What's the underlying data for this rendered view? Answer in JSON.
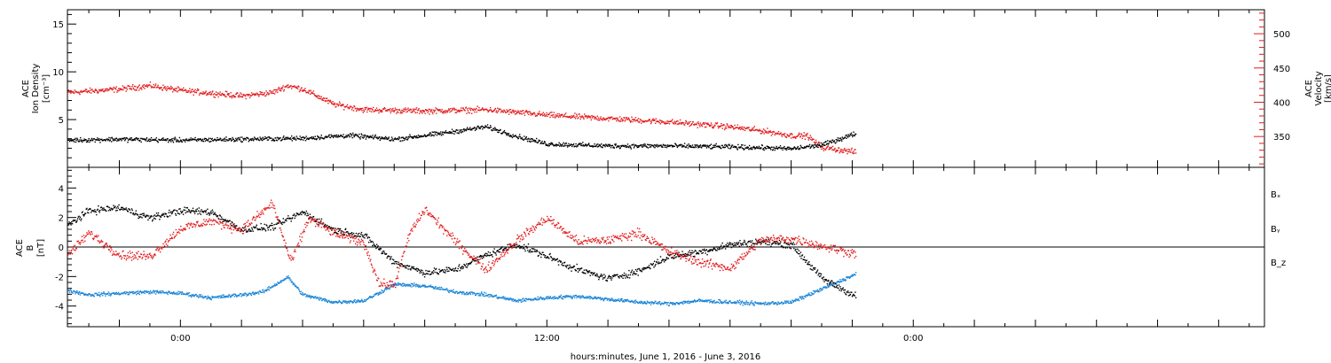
{
  "chart_data": {
    "type": "scatter",
    "x_title": "hours:minutes, June  1, 2016 - June  3, 2016",
    "x_range_hours": [
      -3.7,
      35.5
    ],
    "x_tick_labels": [
      {
        "hour": 0,
        "label": "0:00"
      },
      {
        "hour": 12,
        "label": "12:00"
      },
      {
        "hour": 24,
        "label": "0:00"
      }
    ],
    "colors": {
      "black": "#000000",
      "red": "#e31a1c",
      "blue": "#1a85d6"
    },
    "panels": [
      {
        "id": "density-velocity",
        "left_axis": {
          "label": [
            "ACE",
            "Ion Density",
            "[cm⁻³]"
          ],
          "range": [
            0,
            16.5
          ],
          "ticks": [
            5,
            10,
            15
          ],
          "tick_labels": [
            "5",
            "10",
            "15"
          ],
          "color": "#000000"
        },
        "right_axis": {
          "label": [
            "ACE",
            "Velocity",
            "[km/s]"
          ],
          "range": [
            305,
            535
          ],
          "ticks": [
            350,
            400,
            450,
            500
          ],
          "tick_labels": [
            "350",
            "400",
            "450",
            "500"
          ],
          "color": "#e31a1c"
        },
        "series": [
          {
            "name": "",
            "axis": "left",
            "color": "#000000",
            "x": [
              -3.7,
              -2,
              0,
              2,
              4,
              5.5,
              7,
              8.5,
              10,
              11,
              12,
              14,
              16,
              18,
              19.2,
              20,
              21,
              22.1
            ],
            "y": [
              2.9,
              3.0,
              2.9,
              3.0,
              3.1,
              3.4,
              3.0,
              3.6,
              4.3,
              3.3,
              2.5,
              2.3,
              2.3,
              2.2,
              2.1,
              2.0,
              2.4,
              3.6
            ]
          },
          {
            "name": "",
            "axis": "right",
            "color": "#e31a1c",
            "x": [
              -3.7,
              -2,
              -1,
              0,
              2,
              3,
              3.5,
              4,
              5,
              6,
              8,
              10,
              12,
              14,
              16,
              18,
              19.2,
              20,
              20.5,
              21,
              22.1
            ],
            "y": [
              415,
              420,
              425,
              418,
              410,
              415,
              425,
              420,
              398,
              390,
              388,
              390,
              382,
              377,
              372,
              365,
              358,
              352,
              352,
              335,
              328
            ]
          }
        ]
      },
      {
        "id": "magnetic-field",
        "left_axis": {
          "label": [
            "ACE",
            "B",
            "[nT]"
          ],
          "range": [
            -5.4,
            5.4
          ],
          "ticks": [
            -4,
            -2,
            0,
            2,
            4
          ],
          "tick_labels": [
            "-4",
            "-2",
            "0",
            "2",
            "4"
          ],
          "color": "#000000"
        },
        "zero_line": 0,
        "series": [
          {
            "name": "Bₓ",
            "color": "#000000",
            "x": [
              -3.7,
              -3,
              -2,
              -1,
              0,
              1,
              2,
              3,
              4,
              5,
              6,
              7,
              8,
              9,
              10,
              11,
              12,
              13,
              14,
              15,
              16,
              17,
              18,
              19,
              20,
              21,
              22.1
            ],
            "y": [
              1.5,
              2.5,
              2.7,
              2.0,
              2.5,
              2.4,
              1.2,
              1.4,
              2.4,
              1.2,
              0.8,
              -1.0,
              -1.7,
              -1.5,
              -0.5,
              0.2,
              -0.6,
              -1.5,
              -2.1,
              -1.6,
              -0.6,
              -0.3,
              0.2,
              0.4,
              0.2,
              -2.1,
              -3.3
            ]
          },
          {
            "name": "Bᵧ",
            "color": "#1a85d6",
            "x": [
              -3.7,
              -3,
              -2,
              -1,
              0,
              1,
              2,
              2.7,
              3.5,
              4,
              5,
              6,
              7,
              8,
              9,
              10,
              11,
              12,
              13,
              14,
              15,
              16,
              17,
              18,
              19,
              20,
              21,
              22.1
            ],
            "y": [
              -2.9,
              -3.2,
              -3.1,
              -3.0,
              -3.1,
              -3.4,
              -3.2,
              -3.0,
              -2.0,
              -3.2,
              -3.7,
              -3.6,
              -2.5,
              -2.6,
              -3.0,
              -3.2,
              -3.6,
              -3.4,
              -3.3,
              -3.5,
              -3.7,
              -3.8,
              -3.6,
              -3.7,
              -3.8,
              -3.7,
              -2.8,
              -1.8
            ]
          },
          {
            "name": "B_z",
            "color": "#e31a1c",
            "x": [
              -3.7,
              -3,
              -2,
              -1,
              0,
              1,
              2,
              3,
              3.6,
              4.2,
              5,
              6,
              6.5,
              7,
              7.5,
              8,
              9,
              10,
              11,
              12,
              13,
              14,
              15,
              16,
              17,
              18,
              19,
              20,
              21,
              22.1
            ],
            "y": [
              -0.5,
              1.0,
              -0.5,
              -0.6,
              1.3,
              1.8,
              1.2,
              3.0,
              -1.0,
              2.0,
              1.0,
              0.3,
              -2.5,
              -2.5,
              1.0,
              2.6,
              0.4,
              -1.5,
              0.5,
              2.0,
              0.4,
              0.5,
              1.0,
              -0.3,
              -1.0,
              -1.4,
              0.5,
              0.6,
              0.1,
              -0.4
            ]
          }
        ]
      }
    ]
  }
}
